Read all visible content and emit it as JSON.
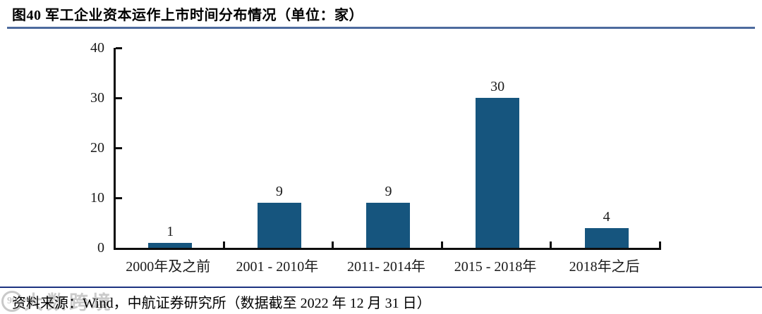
{
  "figure": {
    "title": "图40 军工企业资本运作上市时间分布情况（单位：家）",
    "source": "资料来源：Wind，中航证券研究所（数据截至 2022 年 12 月 31 日）"
  },
  "watermark": {
    "logo": "99",
    "text": "大数跨境"
  },
  "colors": {
    "bar": "#16557E",
    "title_rule": "#4D6B9E",
    "bottom_rule": "#1C3380",
    "axis": "#0d0d0d"
  },
  "chart_data": {
    "type": "bar",
    "title": "军工企业资本运作上市时间分布情况",
    "unit": "家",
    "categories": [
      "2000年及之前",
      "2001 - 2010年",
      "2011- 2014年",
      "2015 - 2018年",
      "2018年之后"
    ],
    "values": [
      1,
      9,
      9,
      30,
      4
    ],
    "xlabel": "",
    "ylabel": "",
    "ylim": [
      0,
      40
    ],
    "yticks": [
      0,
      10,
      20,
      30,
      40
    ],
    "grid": false,
    "legend": false,
    "value_labels": true,
    "bar_color": "#16557E"
  }
}
